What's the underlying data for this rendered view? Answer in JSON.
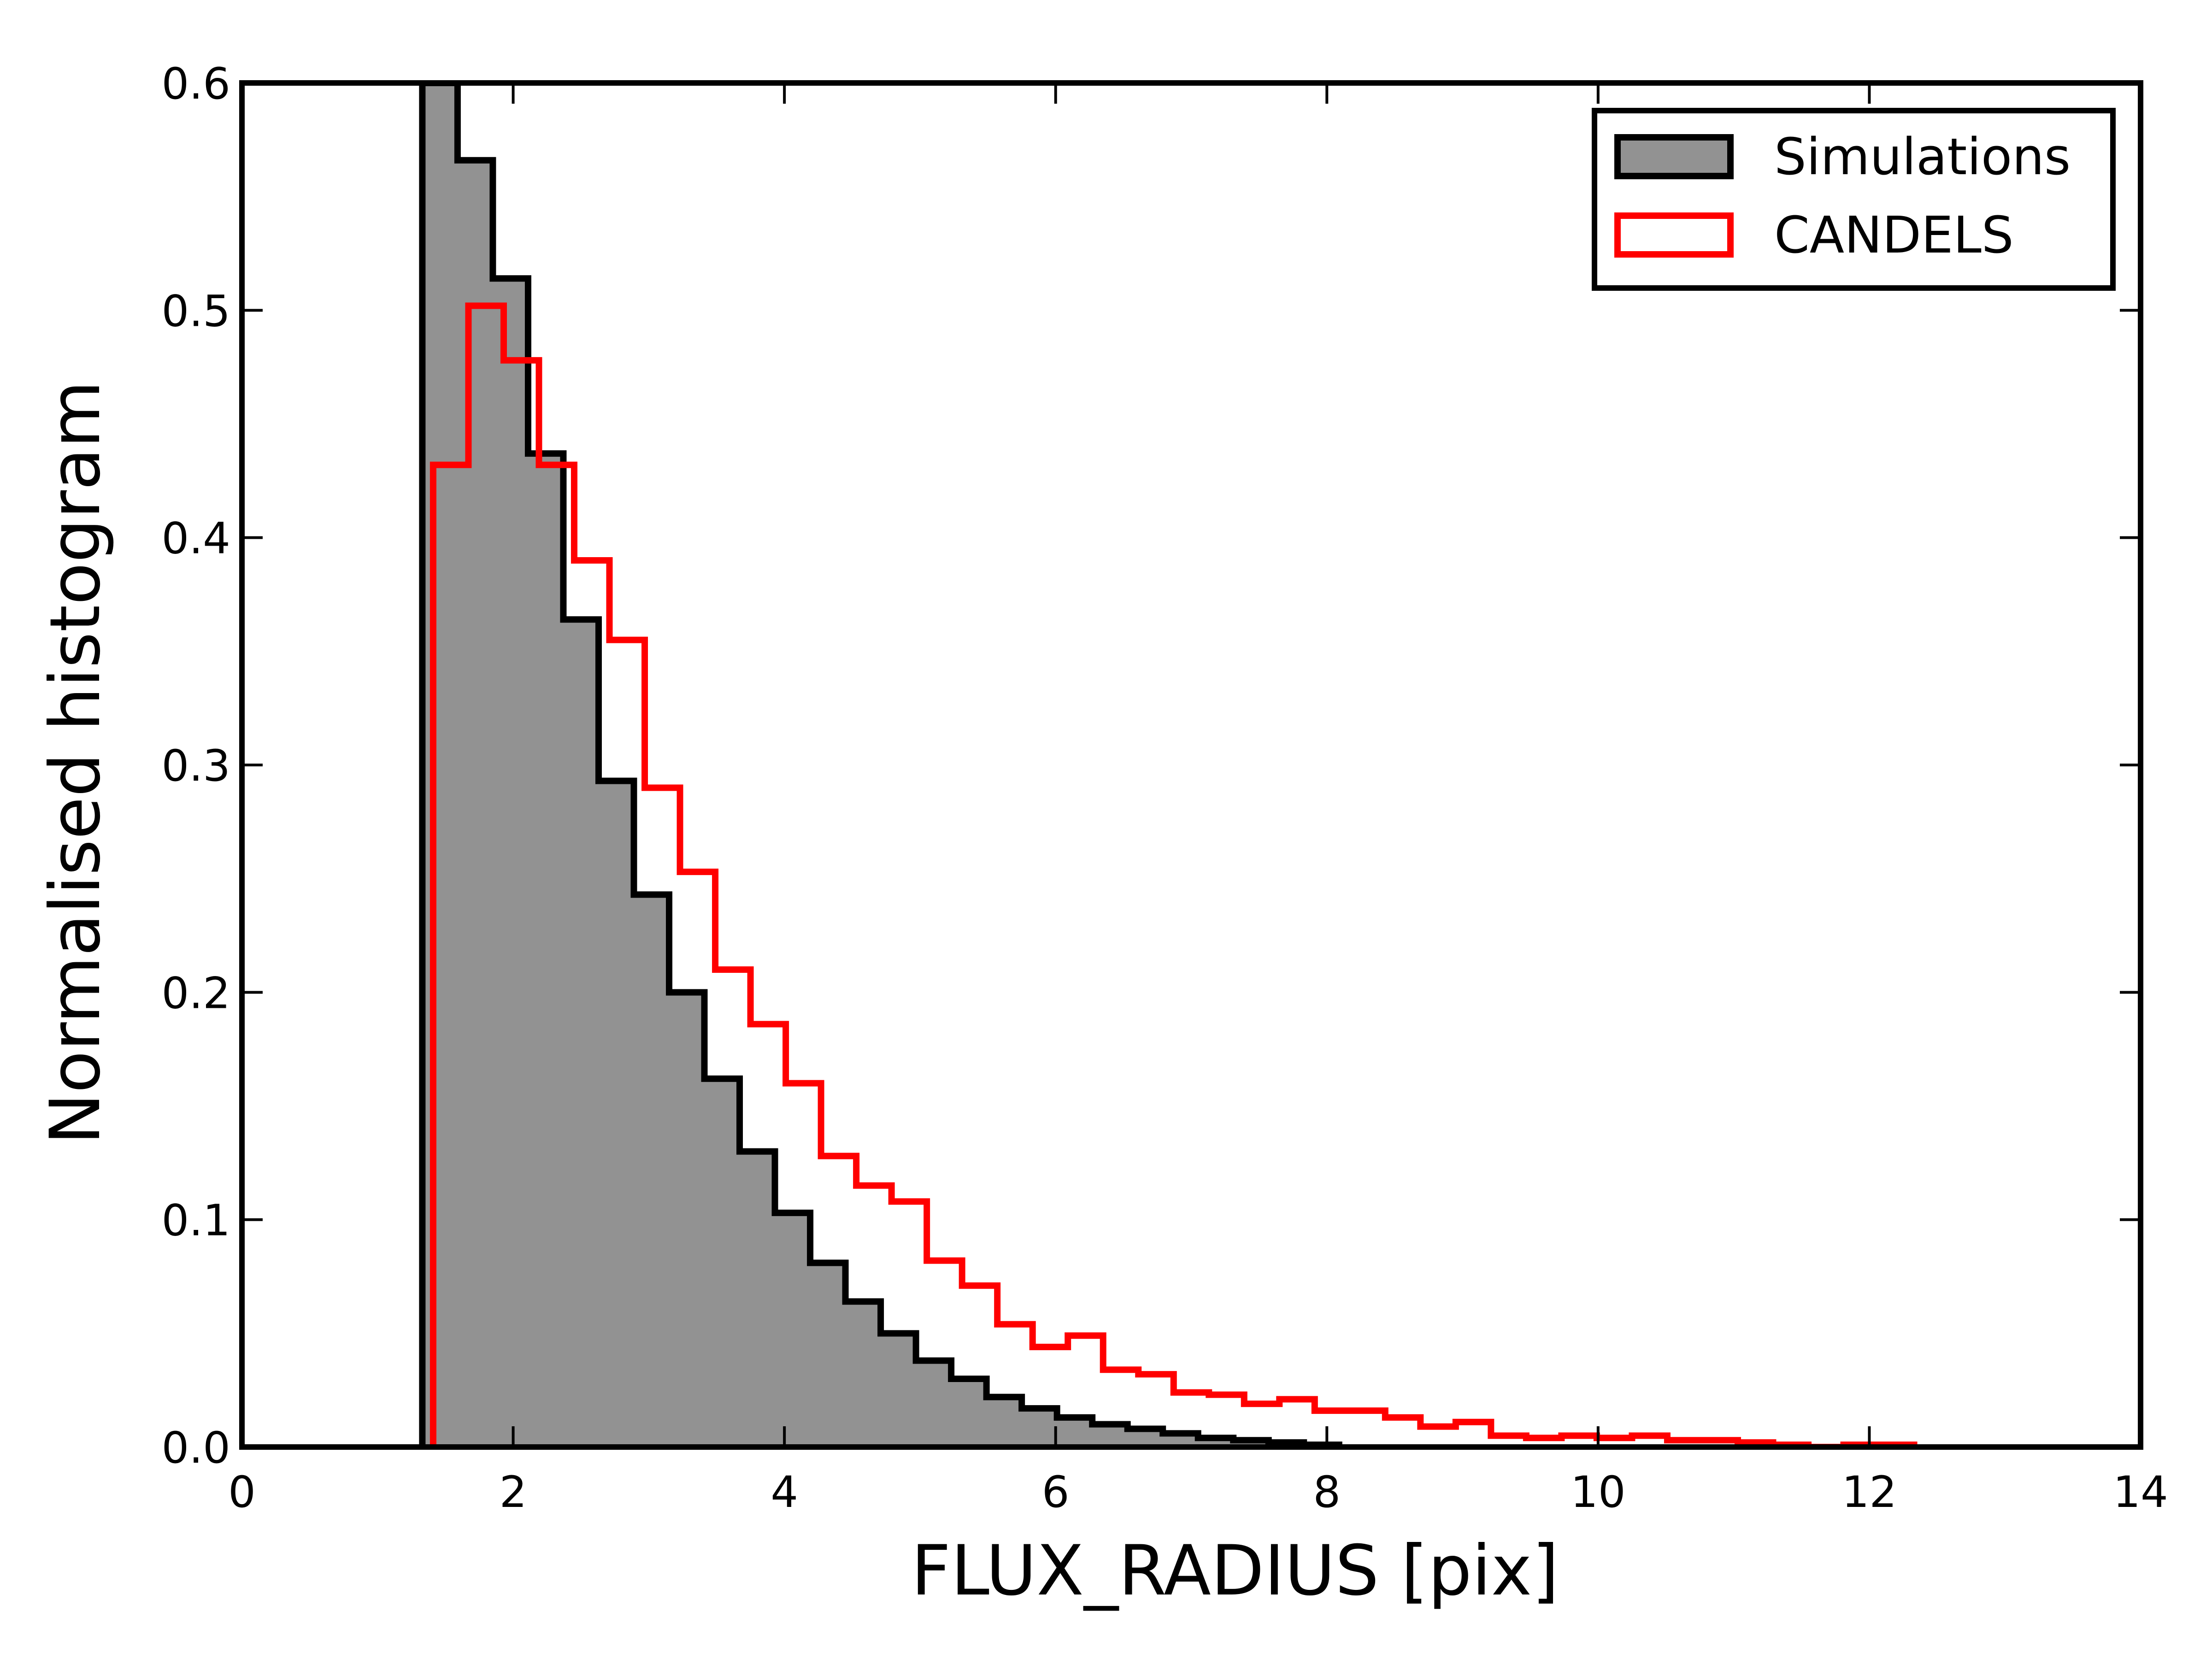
{
  "chart_data": {
    "type": "histogram",
    "xlabel": "FLUX_RADIUS [pix]",
    "ylabel": "Normalised histogram",
    "xlim": [
      0,
      14
    ],
    "ylim": [
      0.0,
      0.6
    ],
    "xticks": [
      "0",
      "2",
      "4",
      "6",
      "8",
      "10",
      "12",
      "14"
    ],
    "yticks": [
      "0.0",
      "0.1",
      "0.2",
      "0.3",
      "0.4",
      "0.5",
      "0.6"
    ],
    "grid": false,
    "legend_position": "top-right",
    "series": [
      {
        "name": "Simulations",
        "style": "filled",
        "fill_color": "#929292",
        "edge_color": "#000000",
        "bin_edges": [
          1.33,
          1.59,
          1.85,
          2.11,
          2.37,
          2.63,
          2.89,
          3.15,
          3.41,
          3.67,
          3.93,
          4.19,
          4.45,
          4.71,
          4.97,
          5.23,
          5.49,
          5.75,
          6.01,
          6.27,
          6.53,
          6.79,
          7.05,
          7.31,
          7.57,
          7.83,
          8.09
        ],
        "values": [
          0.6,
          0.566,
          0.514,
          0.437,
          0.364,
          0.293,
          0.243,
          0.2,
          0.162,
          0.13,
          0.103,
          0.081,
          0.064,
          0.05,
          0.038,
          0.03,
          0.022,
          0.017,
          0.013,
          0.01,
          0.008,
          0.006,
          0.004,
          0.003,
          0.002,
          0.001
        ]
      },
      {
        "name": "CANDELS",
        "style": "step",
        "edge_color": "#ff0000",
        "bin_edges": [
          1.41,
          1.67,
          1.93,
          2.19,
          2.45,
          2.71,
          2.97,
          3.23,
          3.49,
          3.75,
          4.01,
          4.27,
          4.53,
          4.79,
          5.05,
          5.31,
          5.57,
          5.83,
          6.09,
          6.35,
          6.61,
          6.87,
          7.13,
          7.39,
          7.65,
          7.91,
          8.17,
          8.43,
          8.69,
          8.95,
          9.21,
          9.47,
          9.73,
          9.99,
          10.25,
          10.51,
          10.77,
          11.03,
          11.29,
          11.55,
          11.81,
          12.07,
          12.33
        ],
        "values": [
          0.432,
          0.502,
          0.478,
          0.432,
          0.39,
          0.355,
          0.29,
          0.253,
          0.21,
          0.186,
          0.16,
          0.128,
          0.115,
          0.108,
          0.082,
          0.071,
          0.054,
          0.044,
          0.049,
          0.034,
          0.032,
          0.024,
          0.023,
          0.019,
          0.021,
          0.016,
          0.016,
          0.013,
          0.009,
          0.011,
          0.005,
          0.004,
          0.005,
          0.004,
          0.005,
          0.003,
          0.003,
          0.002,
          0.001,
          0.0,
          0.001,
          0.001
        ]
      }
    ]
  }
}
